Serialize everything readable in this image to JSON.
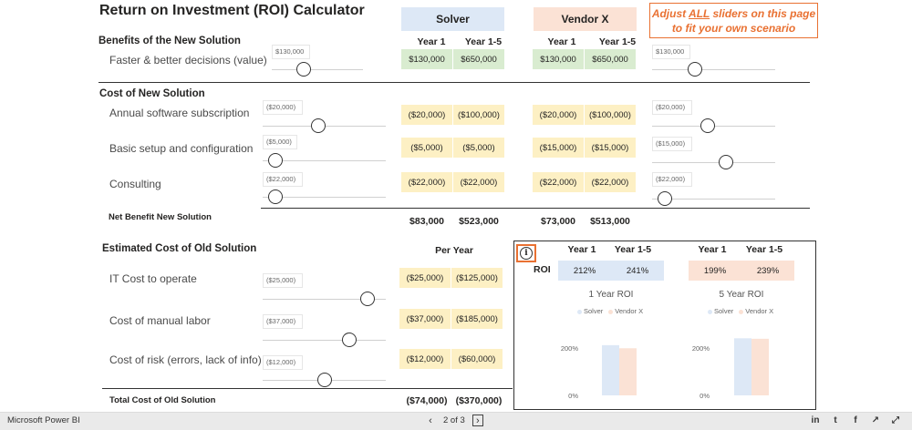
{
  "title": "Return on Investment (ROI) Calculator",
  "headers": {
    "solver": "Solver",
    "vendor": "Vendor X"
  },
  "hint": {
    "line1_pre": "Adjust ",
    "line1_em": "ALL",
    "line1_post": " sliders on this page",
    "line2": "to fit your own scenario"
  },
  "columns": {
    "year1": "Year 1",
    "year15": "Year 1-5",
    "per_year": "Per Year"
  },
  "benefits": {
    "heading": "Benefits of the New Solution",
    "rows": [
      {
        "label": "Faster & better decisions (value)",
        "slider_left": "$130,000",
        "slider_right": "$130,000",
        "solver_y1": "$130,000",
        "solver_y5": "$650,000",
        "vendor_y1": "$130,000",
        "vendor_y5": "$650,000"
      }
    ]
  },
  "costs_new": {
    "heading": "Cost of New Solution",
    "rows": [
      {
        "label": "Annual software subscription",
        "slider_left": "($20,000)",
        "slider_right": "($20,000)",
        "solver_y1": "($20,000)",
        "solver_y5": "($100,000)",
        "vendor_y1": "($20,000)",
        "vendor_y5": "($100,000)"
      },
      {
        "label": "Basic setup and configuration",
        "slider_left": "($5,000)",
        "slider_right": "($15,000)",
        "solver_y1": "($5,000)",
        "solver_y5": "($5,000)",
        "vendor_y1": "($15,000)",
        "vendor_y5": "($15,000)"
      },
      {
        "label": "Consulting",
        "slider_left": "($22,000)",
        "slider_right": "($22,000)",
        "solver_y1": "($22,000)",
        "solver_y5": "($22,000)",
        "vendor_y1": "($22,000)",
        "vendor_y5": "($22,000)"
      }
    ]
  },
  "net_benefit": {
    "label": "Net Benefit New Solution",
    "solver_y1": "$83,000",
    "solver_y5": "$523,000",
    "vendor_y1": "$73,000",
    "vendor_y5": "$513,000"
  },
  "costs_old": {
    "heading": "Estimated Cost of Old Solution",
    "rows": [
      {
        "label": "IT Cost to operate",
        "slider": "($25,000)",
        "y1": "($25,000)",
        "y5": "($125,000)"
      },
      {
        "label": "Cost of manual labor",
        "slider": "($37,000)",
        "y1": "($37,000)",
        "y5": "($185,000)"
      },
      {
        "label": "Cost of risk (errors, lack of info)",
        "slider": "($12,000)",
        "y1": "($12,000)",
        "y5": "($60,000)"
      }
    ]
  },
  "total_old": {
    "label": "Total Cost of Old Solution",
    "y1": "($74,000)",
    "y5": "($370,000)"
  },
  "roi": {
    "label": "ROI",
    "info_icon": "i",
    "solver_y1": "212%",
    "solver_y5": "241%",
    "vendor_y1": "199%",
    "vendor_y5": "239%",
    "chart1_title": "1 Year ROI",
    "chart5_title": "5 Year ROI",
    "legend_solver": "Solver",
    "legend_vendor": "Vendor X",
    "tick_200": "200%",
    "tick_0": "0%"
  },
  "chart_data": [
    {
      "type": "bar",
      "title": "1 Year ROI",
      "categories": [
        "Solver",
        "Vendor X"
      ],
      "values": [
        212,
        199
      ],
      "ylim": [
        0,
        250
      ],
      "yticks": [
        "0%",
        "200%"
      ]
    },
    {
      "type": "bar",
      "title": "5 Year ROI",
      "categories": [
        "Solver",
        "Vendor X"
      ],
      "values": [
        241,
        239
      ],
      "ylim": [
        0,
        250
      ],
      "yticks": [
        "0%",
        "200%"
      ]
    }
  ],
  "colors": {
    "solver": "#dde8f6",
    "vendor": "#fbe2d5",
    "accent": "#e97132",
    "green": "#d9ecd0",
    "yellow": "#fdf0c4"
  },
  "slider_levels": {
    "benefit_left": 0.35,
    "benefit_right": 0.35,
    "sub_left": 0.45,
    "sub_right": 0.45,
    "setup_left": 0.1,
    "setup_right": 0.6,
    "consult_left": 0.1,
    "consult_right": 0.1,
    "it_cost": 0.85,
    "labor": 0.7,
    "risk": 0.5
  },
  "footer": {
    "brand": "Microsoft Power BI",
    "page": "2 of 3",
    "prev_icon": "‹",
    "next_icon": "›",
    "icons": [
      "linkedin-icon",
      "twitter-icon",
      "facebook-icon",
      "share-icon",
      "expand-icon"
    ],
    "icon_glyphs": [
      "in",
      "t",
      "f",
      "↗",
      "⤢"
    ]
  }
}
